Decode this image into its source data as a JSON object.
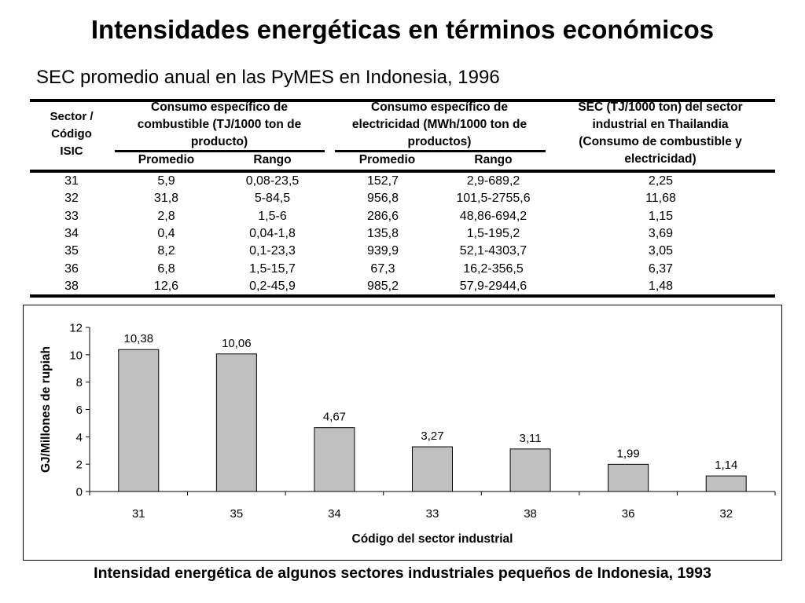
{
  "title": "Intensidades energéticas en términos económicos",
  "subtitle": "SEC promedio anual en las PyMES en Indonesia, 1996",
  "table": {
    "headers": {
      "sector": [
        "Sector /",
        "Código",
        "ISIC"
      ],
      "fuel": [
        "Consumo específico de",
        "combustible (TJ/1000 ton de",
        "producto)"
      ],
      "elec": [
        "Consumo específico de",
        "electricidad (MWh/1000 ton de",
        "productos)"
      ],
      "thai": [
        "SEC (TJ/1000 ton) del sector",
        "industrial en Thailandia",
        "(Consumo de combustible y",
        "electricidad)"
      ],
      "fuel_avg": "Promedio",
      "fuel_range": "Rango",
      "elec_avg": "Promedio",
      "elec_range": "Rango"
    },
    "rows": [
      [
        "31",
        "5,9",
        "0,08-23,5",
        "152,7",
        "2,9-689,2",
        "2,25"
      ],
      [
        "32",
        "31,8",
        "5-84,5",
        "956,8",
        "101,5-2755,6",
        "11,68"
      ],
      [
        "33",
        "2,8",
        "1,5-6",
        "286,6",
        "48,86-694,2",
        "1,15"
      ],
      [
        "34",
        "0,4",
        "0,04-1,8",
        "135,8",
        "1,5-195,2",
        "3,69"
      ],
      [
        "35",
        "8,2",
        "0,1-23,3",
        "939,9",
        "52,1-4303,7",
        "3,05"
      ],
      [
        "36",
        "6,8",
        "1,5-15,7",
        "67,3",
        "16,2-356,5",
        "6,37"
      ],
      [
        "38",
        "12,6",
        "0,2-45,9",
        "985,2",
        "57,9-2944,6",
        "1,48"
      ]
    ]
  },
  "chart_data": {
    "type": "bar",
    "categories": [
      "31",
      "35",
      "34",
      "33",
      "38",
      "36",
      "32"
    ],
    "values": [
      10.38,
      10.06,
      4.67,
      3.27,
      3.11,
      1.99,
      1.14
    ],
    "value_labels": [
      "10,38",
      "10,06",
      "4,67",
      "3,27",
      "3,11",
      "1,99",
      "1,14"
    ],
    "yticks": [
      "0",
      "2",
      "4",
      "6",
      "8",
      "10",
      "12"
    ],
    "ylim": [
      0,
      12
    ],
    "xlabel": "Código del sector industrial",
    "ylabel": "GJ/Millones de rupiah",
    "bar_color": "#c0c0c0",
    "grid": false,
    "legend": false
  },
  "caption": "Intensidad energética de algunos sectores industriales pequeños de Indonesia, 1993"
}
